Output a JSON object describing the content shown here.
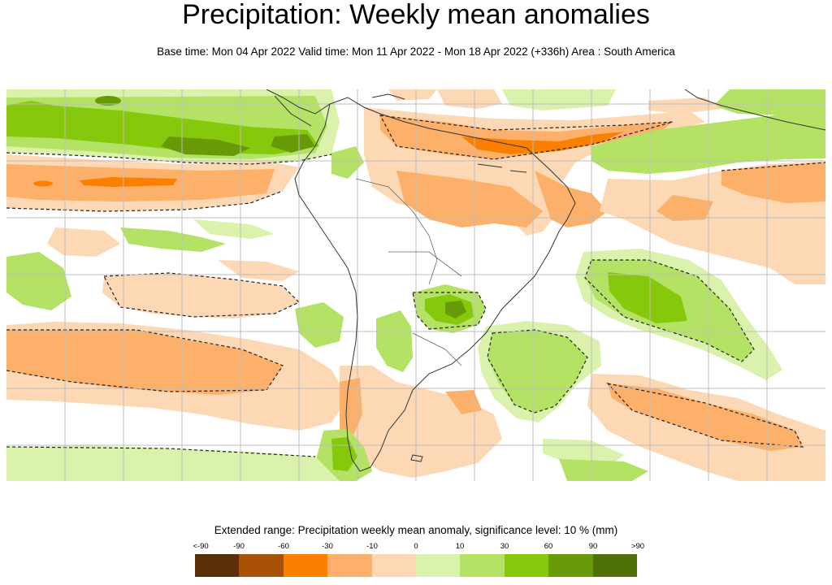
{
  "header": {
    "title": "Precipitation: Weekly mean anomalies",
    "subtitle": "Base time: Mon 04 Apr 2022 Valid time: Mon 11 Apr 2022 - Mon 18 Apr 2022 (+336h) Area : South America"
  },
  "legend": {
    "title": "Extended range: Precipitation weekly mean anomaly, significance level: 10 % (mm)",
    "labels": [
      "<-90",
      "-90",
      "-60",
      "-30",
      "-10",
      "0",
      "10",
      "30",
      "60",
      "90",
      ">90"
    ],
    "colors": [
      "#5a2e08",
      "#a85208",
      "#fb8000",
      "#fdb06a",
      "#fdd8b4",
      "#daf2ab",
      "#b4e264",
      "#86c80c",
      "#679a06",
      "#4e7004"
    ]
  },
  "map": {
    "area": "South America",
    "land_border_color": "#333333",
    "grid_color": "#bdbdbd"
  }
}
